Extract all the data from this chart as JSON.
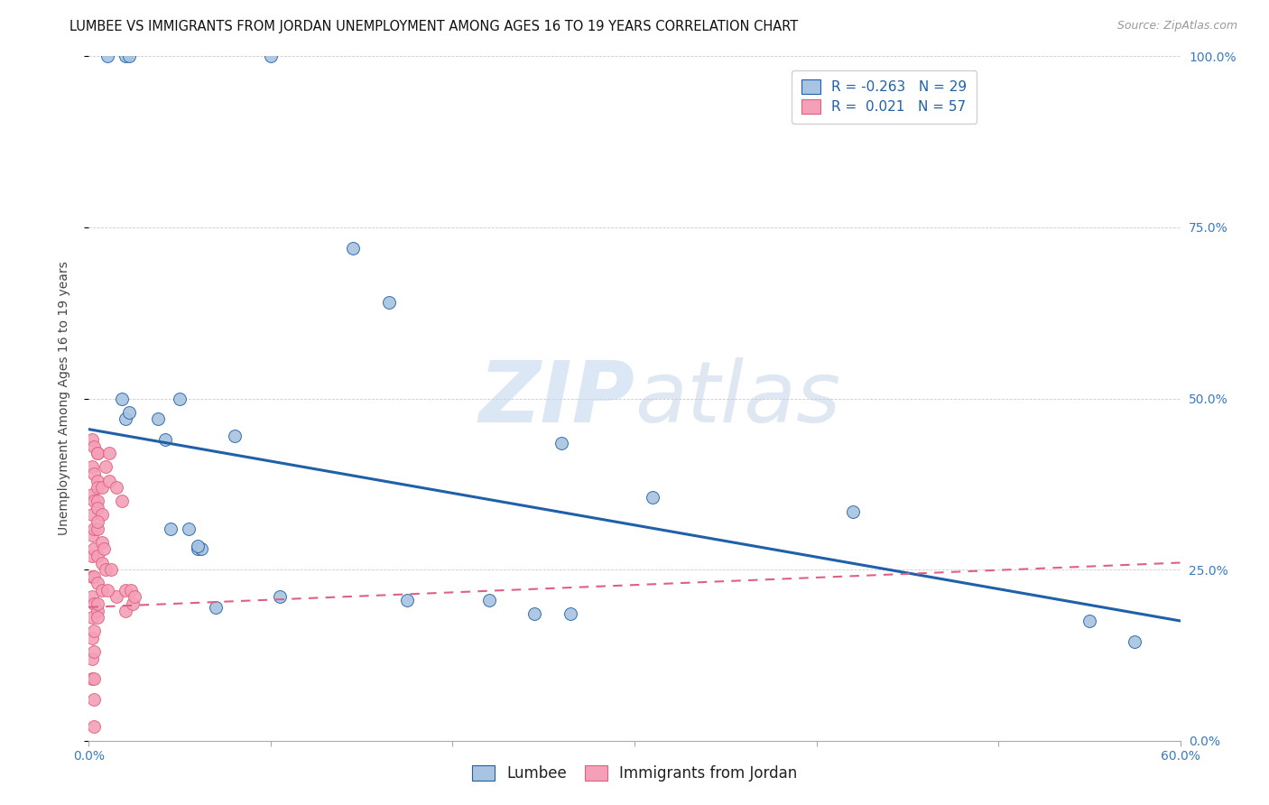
{
  "title": "LUMBEE VS IMMIGRANTS FROM JORDAN UNEMPLOYMENT AMONG AGES 16 TO 19 YEARS CORRELATION CHART",
  "source": "Source: ZipAtlas.com",
  "ylabel": "Unemployment Among Ages 16 to 19 years",
  "ylabel_right_ticks": [
    "100.0%",
    "75.0%",
    "50.0%",
    "25.0%",
    "0.0%"
  ],
  "legend_lumbee": "Lumbee",
  "legend_jordan": "Immigrants from Jordan",
  "lumbee_R": "-0.263",
  "lumbee_N": "29",
  "jordan_R": "0.021",
  "jordan_N": "57",
  "lumbee_color": "#a8c4e0",
  "jordan_color": "#f4a0b8",
  "lumbee_line_color": "#2060a8",
  "jordan_line_color": "#e06080",
  "background_color": "#ffffff",
  "watermark_color": "#dce8f5",
  "lumbee_x": [
    0.01,
    0.02,
    0.022,
    0.1,
    0.02,
    0.038,
    0.042,
    0.045,
    0.055,
    0.06,
    0.062,
    0.105,
    0.145,
    0.165,
    0.175,
    0.22,
    0.245,
    0.26,
    0.265,
    0.31,
    0.42,
    0.55,
    0.575,
    0.018,
    0.022,
    0.05,
    0.06,
    0.07,
    0.08
  ],
  "lumbee_y": [
    1.0,
    1.0,
    1.0,
    1.0,
    0.47,
    0.47,
    0.44,
    0.31,
    0.31,
    0.28,
    0.28,
    0.21,
    0.72,
    0.64,
    0.205,
    0.205,
    0.185,
    0.435,
    0.185,
    0.355,
    0.335,
    0.175,
    0.145,
    0.5,
    0.48,
    0.5,
    0.285,
    0.195,
    0.445
  ],
  "jordan_x": [
    0.002,
    0.002,
    0.002,
    0.002,
    0.002,
    0.002,
    0.002,
    0.002,
    0.002,
    0.002,
    0.002,
    0.002,
    0.003,
    0.003,
    0.003,
    0.003,
    0.003,
    0.003,
    0.003,
    0.003,
    0.003,
    0.003,
    0.003,
    0.003,
    0.005,
    0.005,
    0.005,
    0.005,
    0.005,
    0.005,
    0.005,
    0.005,
    0.005,
    0.005,
    0.005,
    0.005,
    0.007,
    0.007,
    0.007,
    0.007,
    0.007,
    0.009,
    0.011,
    0.011,
    0.015,
    0.015,
    0.018,
    0.02,
    0.02,
    0.023,
    0.024,
    0.025,
    0.005,
    0.008,
    0.009,
    0.01,
    0.012
  ],
  "jordan_y": [
    0.44,
    0.4,
    0.36,
    0.33,
    0.3,
    0.27,
    0.24,
    0.21,
    0.18,
    0.15,
    0.12,
    0.09,
    0.43,
    0.39,
    0.35,
    0.31,
    0.28,
    0.24,
    0.2,
    0.16,
    0.13,
    0.09,
    0.06,
    0.02,
    0.42,
    0.38,
    0.35,
    0.31,
    0.27,
    0.23,
    0.19,
    0.37,
    0.34,
    0.42,
    0.2,
    0.18,
    0.37,
    0.33,
    0.29,
    0.26,
    0.22,
    0.4,
    0.42,
    0.38,
    0.37,
    0.21,
    0.35,
    0.22,
    0.19,
    0.22,
    0.2,
    0.21,
    0.32,
    0.28,
    0.25,
    0.22,
    0.25
  ],
  "xlim": [
    0.0,
    0.6
  ],
  "ylim": [
    0.0,
    1.0
  ],
  "title_fontsize": 10.5,
  "source_fontsize": 9,
  "axis_label_fontsize": 10,
  "tick_fontsize": 10,
  "legend_fontsize": 11,
  "marker_size": 100
}
